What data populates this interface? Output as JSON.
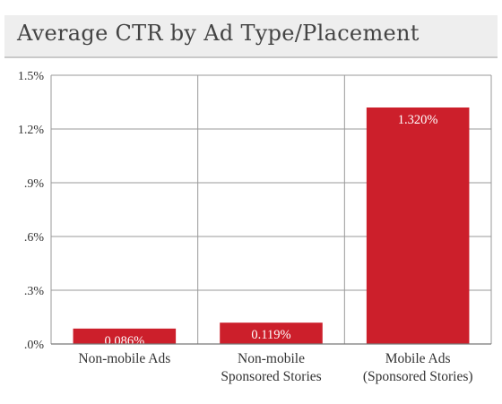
{
  "chart_data": {
    "type": "bar",
    "title": "Average CTR by Ad Type/Placement",
    "xlabel": "",
    "ylabel": "",
    "categories": [
      [
        "Non-mobile Ads"
      ],
      [
        "Non-mobile",
        "Sponsored Stories"
      ],
      [
        "Mobile Ads",
        "(Sponsored Stories)"
      ]
    ],
    "values": [
      0.086,
      0.119,
      1.32
    ],
    "data_labels": [
      "0.086%",
      "0.119%",
      "1.320%"
    ],
    "ylim": [
      0,
      1.5
    ],
    "yticks": [
      0,
      0.3,
      0.6,
      0.9,
      1.2,
      1.5
    ],
    "ytick_labels": [
      ".0%",
      ".3%",
      ".6%",
      ".9%",
      "1.2%",
      "1.5%"
    ],
    "grid": true,
    "bar_color": "#cc1f2b",
    "grid_color": "#9a9a9a"
  }
}
